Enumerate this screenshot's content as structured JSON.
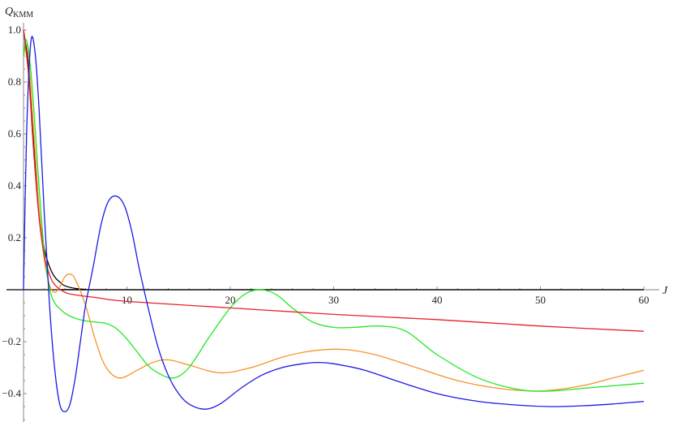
{
  "chart_data": {
    "type": "line",
    "title": "",
    "xlabel": "J",
    "ylabel": "Q",
    "ylabel_subscript": "KMM",
    "xlim": [
      0,
      60
    ],
    "ylim": [
      -0.5,
      1.05
    ],
    "grid": false,
    "legend": null,
    "x_ticks": [
      10,
      20,
      30,
      40,
      50,
      60
    ],
    "x_tick_labels": [
      "10",
      "20",
      "30",
      "40",
      "50",
      "60"
    ],
    "y_ticks": [
      -0.4,
      -0.2,
      0.2,
      0.4,
      0.6,
      0.8,
      1.0
    ],
    "y_tick_labels": [
      "-0.4",
      "-0.2",
      "0.2",
      "0.4",
      "0.6",
      "0.8",
      "1.0"
    ],
    "series": [
      {
        "name": "black",
        "color": "#000000",
        "x": [
          0,
          0.5,
          1,
          1.5,
          2,
          2.5,
          3,
          3.5,
          4,
          5,
          6,
          8,
          60
        ],
        "y": [
          1.0,
          0.85,
          0.55,
          0.3,
          0.16,
          0.09,
          0.05,
          0.03,
          0.015,
          0.005,
          0.001,
          0.0,
          0.0
        ]
      },
      {
        "name": "red",
        "color": "#e8202a",
        "x": [
          0,
          0.5,
          1,
          1.5,
          2,
          2.5,
          3,
          4,
          5,
          7,
          10,
          20,
          30,
          40,
          50,
          60
        ],
        "y": [
          1.0,
          0.82,
          0.52,
          0.28,
          0.13,
          0.06,
          0.02,
          -0.01,
          -0.02,
          -0.03,
          -0.045,
          -0.07,
          -0.095,
          -0.115,
          -0.14,
          -0.16
        ]
      },
      {
        "name": "orange",
        "color": "#f7922b",
        "x": [
          0,
          0.4,
          1,
          1.5,
          2,
          2.5,
          3,
          3.5,
          4,
          4.5,
          5,
          6,
          7,
          8,
          9.3,
          11,
          12.5,
          14,
          16,
          19,
          22,
          25,
          28,
          31,
          34,
          38,
          42,
          46,
          50,
          54,
          57,
          60
        ],
        "y": [
          0.9,
          0.93,
          0.6,
          0.32,
          0.12,
          0.02,
          -0.01,
          0.01,
          0.05,
          0.06,
          0.04,
          -0.06,
          -0.2,
          -0.3,
          -0.34,
          -0.31,
          -0.28,
          -0.27,
          -0.29,
          -0.32,
          -0.3,
          -0.26,
          -0.235,
          -0.23,
          -0.25,
          -0.3,
          -0.35,
          -0.38,
          -0.39,
          -0.37,
          -0.34,
          -0.31
        ]
      },
      {
        "name": "green",
        "color": "#22e822",
        "x": [
          0,
          0.3,
          0.8,
          1.5,
          2,
          2.5,
          3,
          4,
          5,
          6,
          7,
          8,
          9,
          10,
          11,
          12,
          13,
          14.5,
          16,
          18,
          20,
          21.5,
          23,
          24.5,
          26,
          28,
          30,
          32,
          34.5,
          37,
          40,
          44,
          48,
          51,
          54,
          57,
          60
        ],
        "y": [
          0.9,
          0.96,
          0.8,
          0.4,
          0.15,
          0.01,
          -0.05,
          -0.09,
          -0.11,
          -0.12,
          -0.125,
          -0.13,
          -0.15,
          -0.19,
          -0.24,
          -0.29,
          -0.32,
          -0.34,
          -0.3,
          -0.18,
          -0.07,
          -0.015,
          0.0,
          -0.02,
          -0.07,
          -0.125,
          -0.145,
          -0.145,
          -0.14,
          -0.16,
          -0.25,
          -0.34,
          -0.385,
          -0.39,
          -0.38,
          -0.37,
          -0.36
        ]
      },
      {
        "name": "blue",
        "color": "#1a1ae6",
        "x": [
          0,
          0.3,
          0.7,
          1.1,
          1.5,
          2,
          2.5,
          3,
          3.5,
          4,
          4.5,
          5,
          5.5,
          6,
          6.7,
          7.5,
          8.2,
          9,
          9.8,
          10.5,
          11.2,
          12,
          13,
          14,
          15,
          16,
          17.5,
          19,
          21,
          23,
          25,
          27,
          28.5,
          30,
          33,
          36,
          40,
          44,
          48,
          51,
          54,
          57,
          60
        ],
        "y": [
          0.0,
          0.6,
          0.95,
          0.92,
          0.7,
          0.3,
          -0.05,
          -0.3,
          -0.44,
          -0.47,
          -0.44,
          -0.34,
          -0.2,
          -0.06,
          0.08,
          0.25,
          0.34,
          0.36,
          0.32,
          0.22,
          0.08,
          -0.06,
          -0.22,
          -0.33,
          -0.4,
          -0.44,
          -0.46,
          -0.44,
          -0.38,
          -0.33,
          -0.3,
          -0.285,
          -0.28,
          -0.285,
          -0.31,
          -0.35,
          -0.4,
          -0.43,
          -0.445,
          -0.45,
          -0.447,
          -0.44,
          -0.43
        ]
      }
    ]
  }
}
